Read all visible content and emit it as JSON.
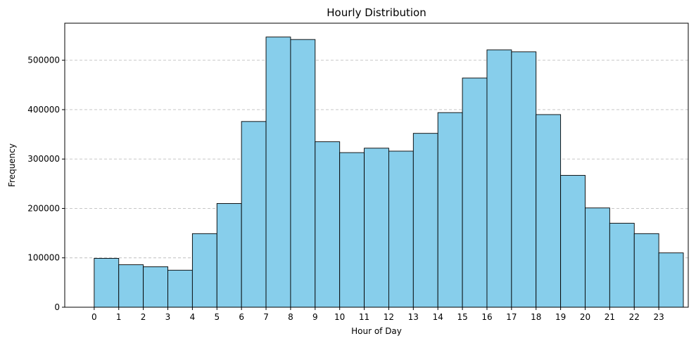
{
  "chart_data": {
    "type": "bar",
    "title": "Hourly Distribution",
    "xlabel": "Hour of Day",
    "ylabel": "Frequency",
    "categories": [
      "0",
      "1",
      "2",
      "3",
      "4",
      "5",
      "6",
      "7",
      "8",
      "9",
      "10",
      "11",
      "12",
      "13",
      "14",
      "15",
      "16",
      "17",
      "18",
      "19",
      "20",
      "21",
      "22",
      "23"
    ],
    "values": [
      99000,
      86000,
      82000,
      75000,
      149000,
      210000,
      376000,
      547000,
      542000,
      335000,
      313000,
      322000,
      316000,
      352000,
      394000,
      464000,
      521000,
      517000,
      390000,
      267000,
      201000,
      170000,
      149000,
      110000
    ],
    "yticks": [
      0,
      100000,
      200000,
      300000,
      400000,
      500000
    ],
    "ylim": [
      0,
      575000
    ],
    "xlim": [
      -1.2,
      24.2
    ],
    "grid": "y-dashed",
    "bar_color": "#87ceeb",
    "edge_color": "#000000"
  }
}
